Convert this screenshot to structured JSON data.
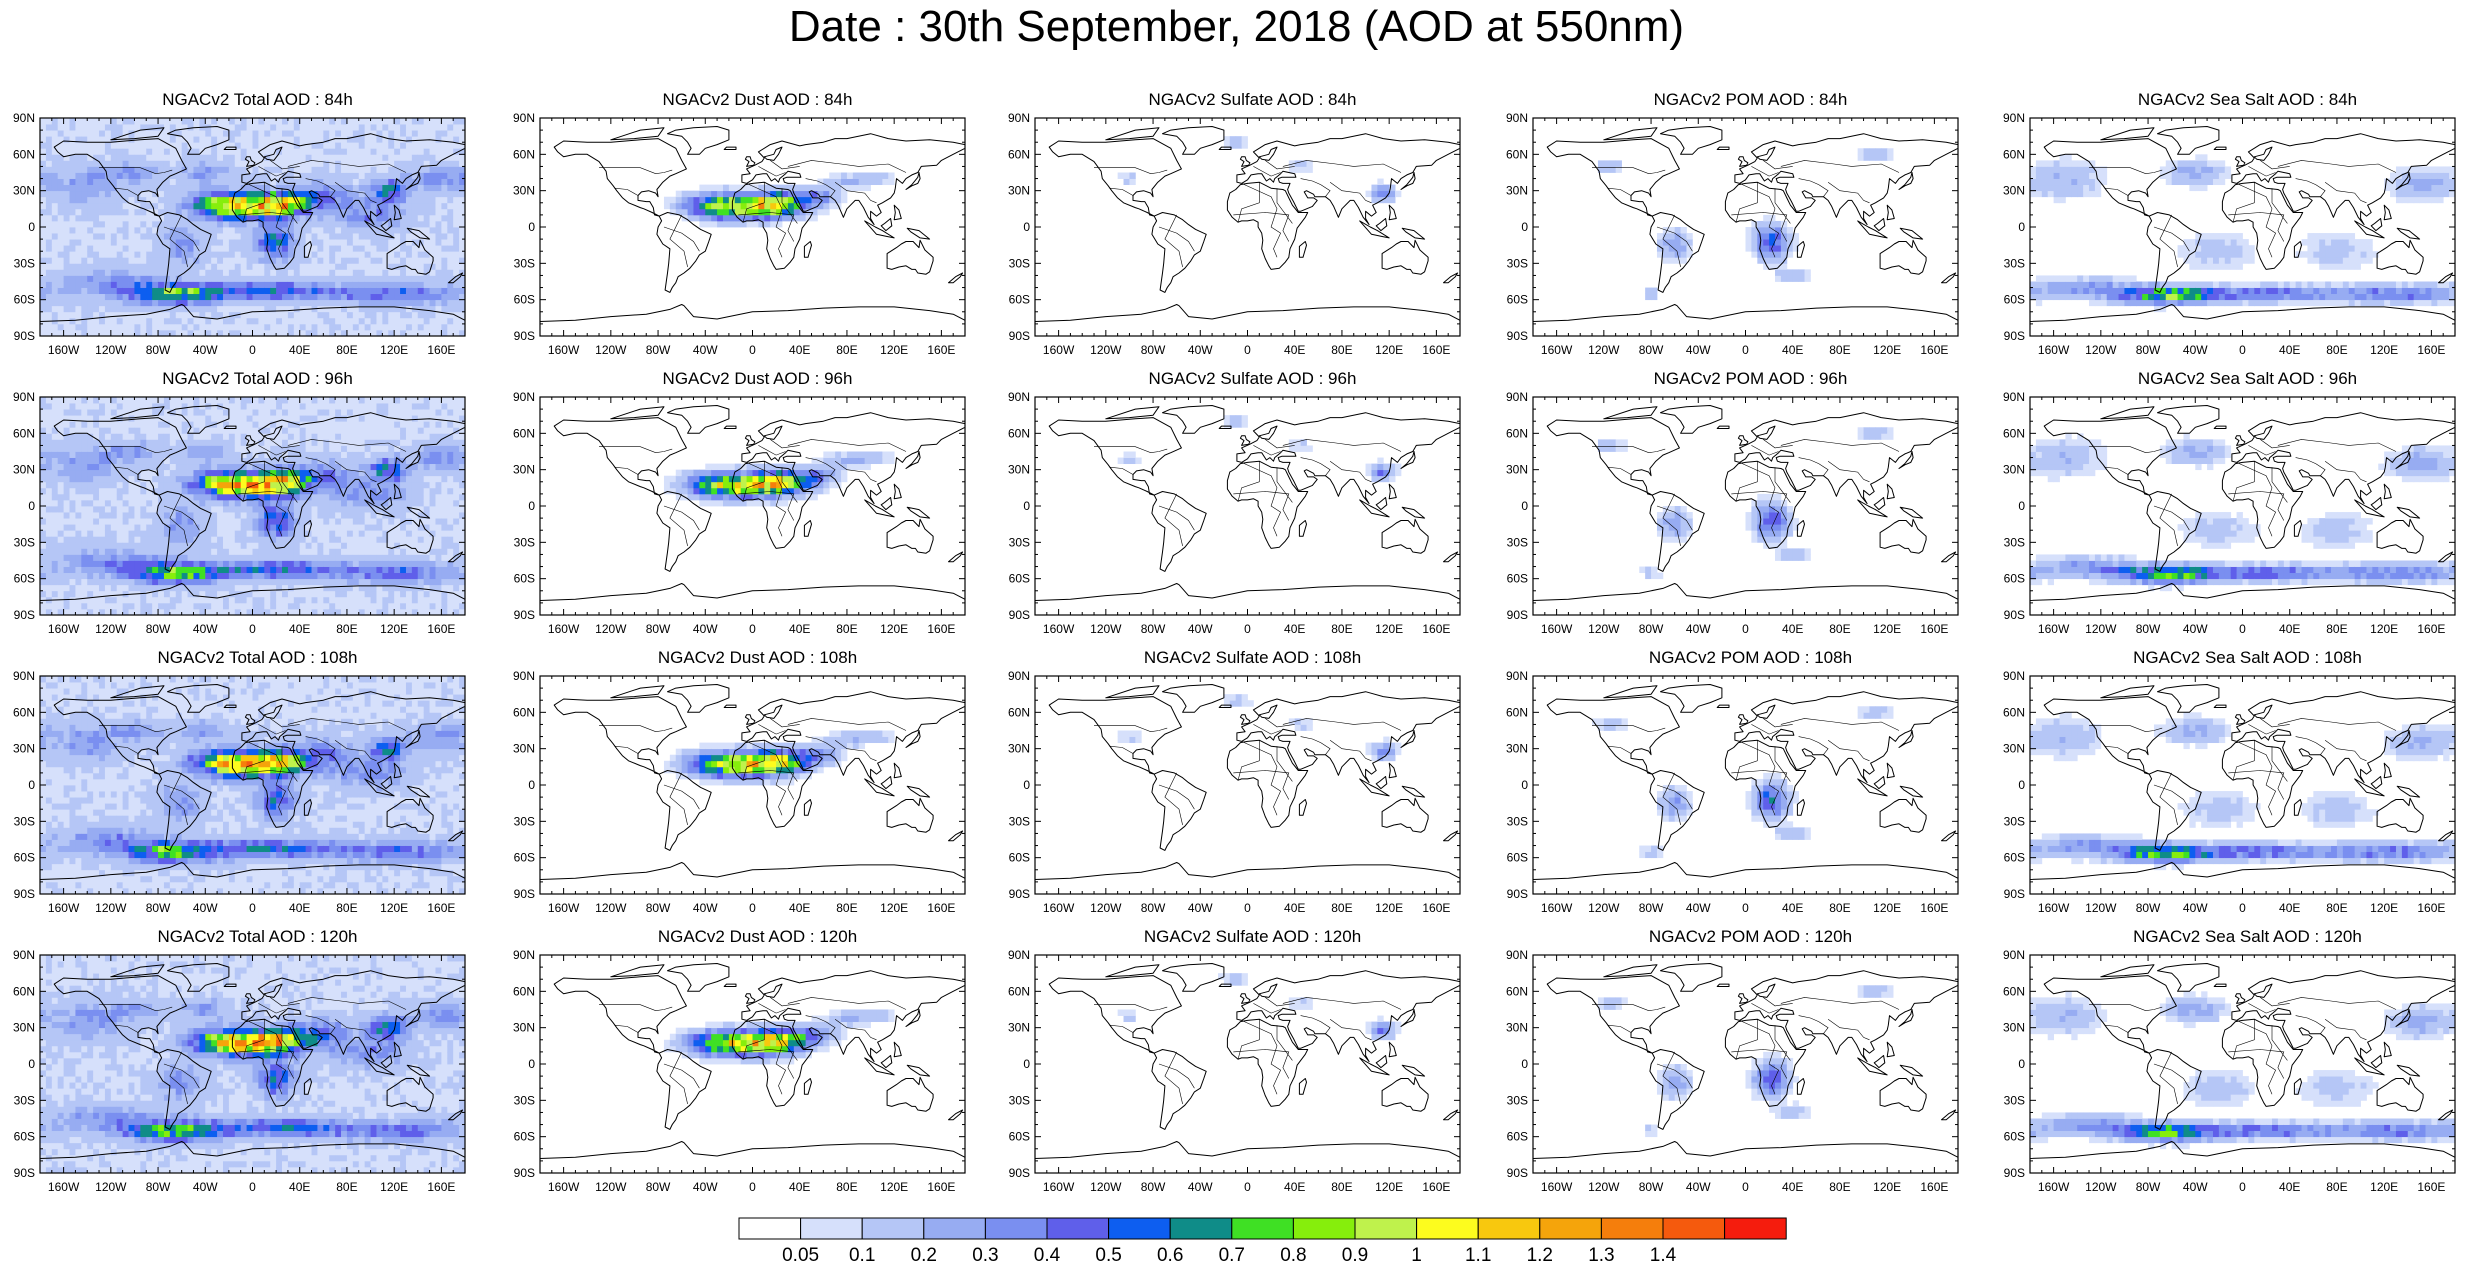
{
  "title": "Date : 30th September, 2018 (AOD at 550nm)",
  "panels": [
    {
      "title": "NGACv2 Total AOD : 84h",
      "species": "total",
      "lead": "84h"
    },
    {
      "title": "NGACv2 Dust AOD : 84h",
      "species": "dust",
      "lead": "84h"
    },
    {
      "title": "NGACv2 Sulfate AOD : 84h",
      "species": "sulfate",
      "lead": "84h"
    },
    {
      "title": "NGACv2 POM AOD : 84h",
      "species": "pom",
      "lead": "84h"
    },
    {
      "title": "NGACv2 Sea Salt AOD : 84h",
      "species": "seasalt",
      "lead": "84h"
    },
    {
      "title": "NGACv2 Total AOD : 96h",
      "species": "total",
      "lead": "96h"
    },
    {
      "title": "NGACv2 Dust AOD : 96h",
      "species": "dust",
      "lead": "96h"
    },
    {
      "title": "NGACv2 Sulfate AOD : 96h",
      "species": "sulfate",
      "lead": "96h"
    },
    {
      "title": "NGACv2 POM AOD : 96h",
      "species": "pom",
      "lead": "96h"
    },
    {
      "title": "NGACv2 Sea Salt AOD : 96h",
      "species": "seasalt",
      "lead": "96h"
    },
    {
      "title": "NGACv2 Total AOD : 108h",
      "species": "total",
      "lead": "108h"
    },
    {
      "title": "NGACv2 Dust AOD : 108h",
      "species": "dust",
      "lead": "108h"
    },
    {
      "title": "NGACv2 Sulfate AOD : 108h",
      "species": "sulfate",
      "lead": "108h"
    },
    {
      "title": "NGACv2 POM AOD : 108h",
      "species": "pom",
      "lead": "108h"
    },
    {
      "title": "NGACv2 Sea Salt AOD : 108h",
      "species": "seasalt",
      "lead": "108h"
    },
    {
      "title": "NGACv2 Total AOD : 120h",
      "species": "total",
      "lead": "120h"
    },
    {
      "title": "NGACv2 Dust AOD : 120h",
      "species": "dust",
      "lead": "120h"
    },
    {
      "title": "NGACv2 Sulfate AOD : 120h",
      "species": "sulfate",
      "lead": "120h"
    },
    {
      "title": "NGACv2 POM AOD : 120h",
      "species": "pom",
      "lead": "120h"
    },
    {
      "title": "NGACv2 Sea Salt  AOD : 120h",
      "species": "seasalt",
      "lead": "120h"
    }
  ],
  "axes": {
    "lat_labels": [
      "90N",
      "60N",
      "30N",
      "0",
      "30S",
      "60S",
      "90S"
    ],
    "lon_labels": [
      "160W",
      "120W",
      "80W",
      "40W",
      "0",
      "40E",
      "80E",
      "120E",
      "160E"
    ]
  },
  "colorbar": {
    "labels": [
      "0.05",
      "0.1",
      "0.2",
      "0.3",
      "0.4",
      "0.5",
      "0.6",
      "0.7",
      "0.8",
      "0.9",
      "1",
      "1.1",
      "1.2",
      "1.3",
      "1.4"
    ],
    "colors": [
      "#ffffff",
      "#d6e0fb",
      "#b5c6f6",
      "#97acf2",
      "#7a8ff0",
      "#5f5fea",
      "#0d5ef0",
      "#0f8c88",
      "#3fe024",
      "#86ee0c",
      "#bff24c",
      "#fdfc1e",
      "#f8c80e",
      "#f5a40b",
      "#f57e0c",
      "#f55a0d",
      "#f51c0d"
    ]
  }
}
